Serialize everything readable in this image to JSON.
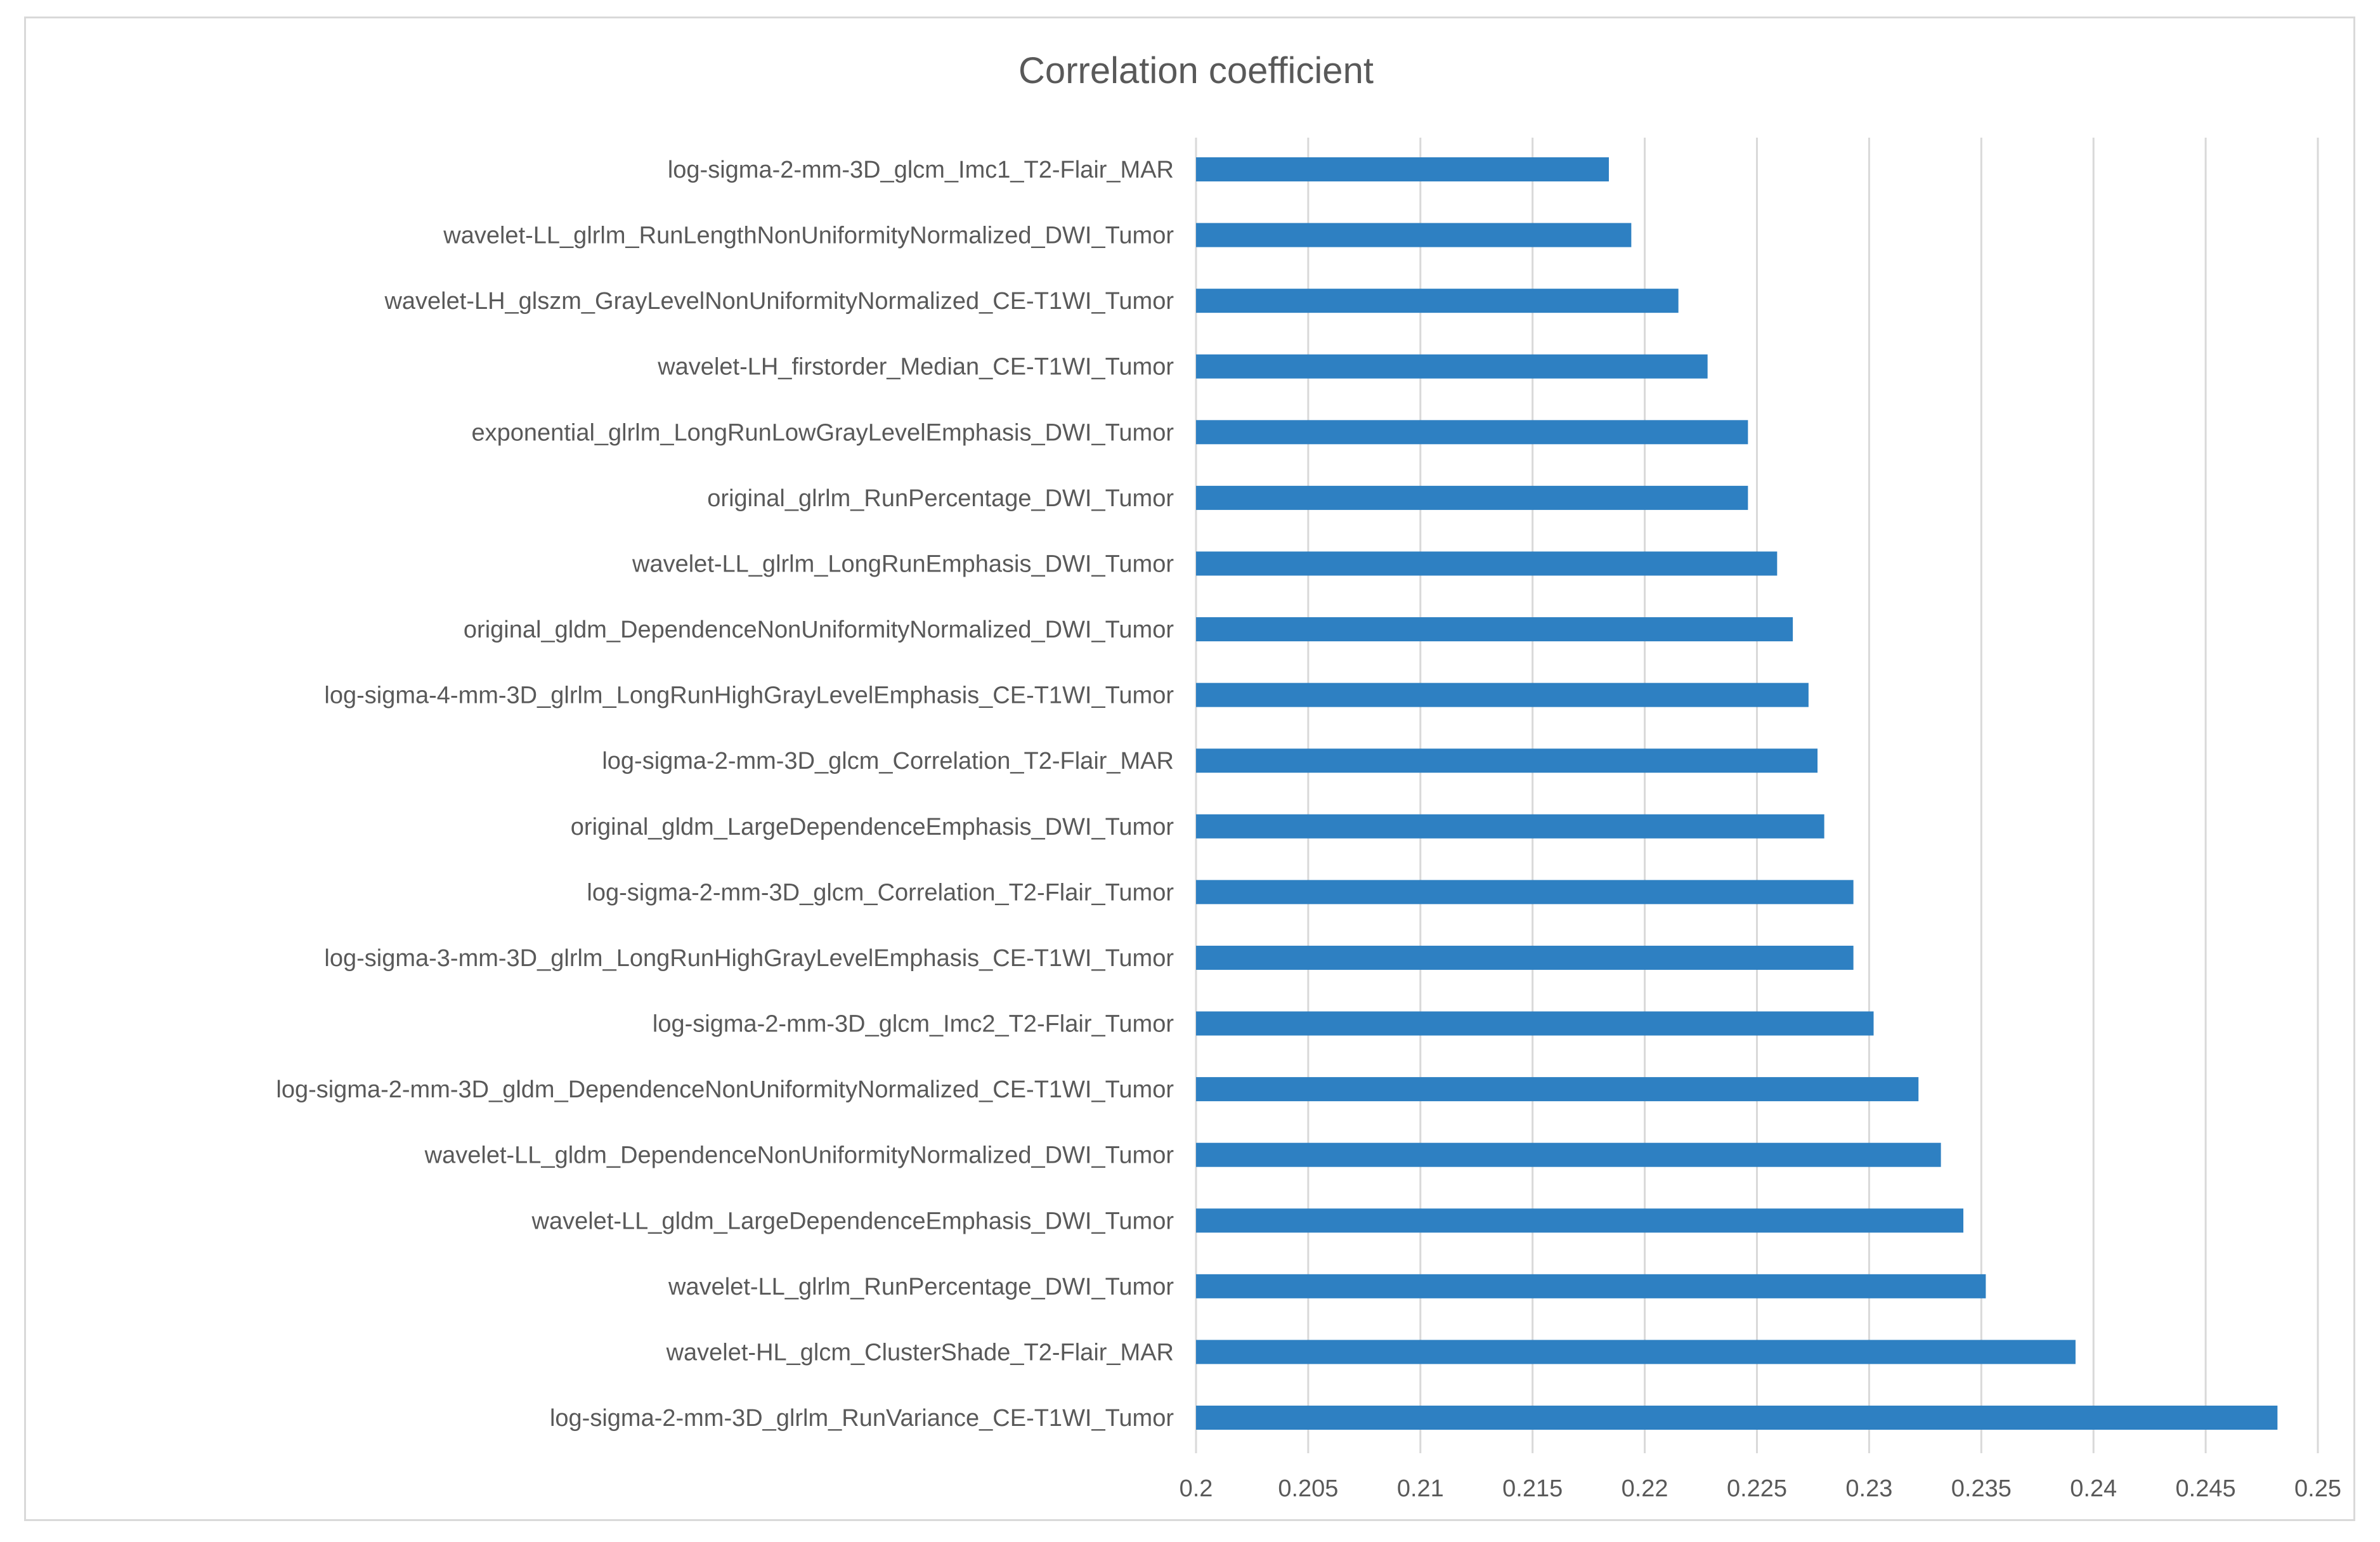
{
  "chart_data": {
    "type": "bar",
    "orientation": "horizontal",
    "title": "Correlation coefficient",
    "xlabel": "",
    "ylabel": "",
    "xlim": [
      0.2,
      0.25
    ],
    "tick_values": [
      0.2,
      0.205,
      0.21,
      0.215,
      0.22,
      0.225,
      0.23,
      0.235,
      0.24,
      0.245,
      0.25
    ],
    "tick_labels": [
      "0.2",
      "0.205",
      "0.21",
      "0.215",
      "0.22",
      "0.225",
      "0.23",
      "0.235",
      "0.24",
      "0.245",
      "0.25"
    ],
    "grid": true,
    "legend": "none",
    "bar_color": "#2e80c2",
    "categories": [
      "log-sigma-2-mm-3D_glcm_Imc1_T2-Flair_MAR",
      "wavelet-LL_glrlm_RunLengthNonUniformityNormalized_DWI_Tumor",
      "wavelet-LH_glszm_GrayLevelNonUniformityNormalized_CE-T1WI_Tumor",
      "wavelet-LH_firstorder_Median_CE-T1WI_Tumor",
      "exponential_glrlm_LongRunLowGrayLevelEmphasis_DWI_Tumor",
      "original_glrlm_RunPercentage_DWI_Tumor",
      "wavelet-LL_glrlm_LongRunEmphasis_DWI_Tumor",
      "original_gldm_DependenceNonUniformityNormalized_DWI_Tumor",
      "log-sigma-4-mm-3D_glrlm_LongRunHighGrayLevelEmphasis_CE-T1WI_Tumor",
      "log-sigma-2-mm-3D_glcm_Correlation_T2-Flair_MAR",
      "original_gldm_LargeDependenceEmphasis_DWI_Tumor",
      "log-sigma-2-mm-3D_glcm_Correlation_T2-Flair_Tumor",
      "log-sigma-3-mm-3D_glrlm_LongRunHighGrayLevelEmphasis_CE-T1WI_Tumor",
      "log-sigma-2-mm-3D_glcm_Imc2_T2-Flair_Tumor",
      "log-sigma-2-mm-3D_gldm_DependenceNonUniformityNormalized_CE-T1WI_Tumor",
      "wavelet-LL_gldm_DependenceNonUniformityNormalized_DWI_Tumor",
      "wavelet-LL_gldm_LargeDependenceEmphasis_DWI_Tumor",
      "wavelet-LL_glrlm_RunPercentage_DWI_Tumor",
      "wavelet-HL_glcm_ClusterShade_T2-Flair_MAR",
      "log-sigma-2-mm-3D_glrlm_RunVariance_CE-T1WI_Tumor"
    ],
    "values": [
      0.2184,
      0.2194,
      0.2215,
      0.2228,
      0.2246,
      0.2246,
      0.2259,
      0.2266,
      0.2273,
      0.2277,
      0.228,
      0.2293,
      0.2293,
      0.2302,
      0.2322,
      0.2332,
      0.2342,
      0.2352,
      0.2392,
      0.2482
    ]
  }
}
